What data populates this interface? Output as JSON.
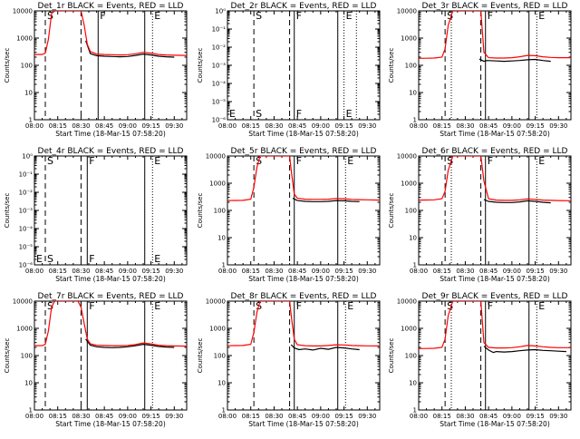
{
  "x_tick_labels": [
    "08:00",
    "08:15",
    "08:30",
    "08:45",
    "09:00",
    "09:15",
    "09:30"
  ],
  "ylabel": "Counts/sec",
  "xlabel": "Start Time (18-Mar-15 07:58:20)",
  "series_colors": {
    "Events": "#000000",
    "LLD": "#ff0000"
  },
  "chart_data": [
    {
      "type": "line",
      "title": "Det_1r BLACK = Events, RED = LLD",
      "x_unit": "minutes after 08:00",
      "xlim": [
        0,
        98
      ],
      "yscale": "log",
      "ylim": [
        1,
        10000
      ],
      "ytick_labels": [
        "1",
        "10",
        "100",
        "1000",
        "10000"
      ],
      "vlines": [
        {
          "x": 7,
          "style": "dashed",
          "label": "S"
        },
        {
          "x": 30,
          "style": "dashed",
          "label": ""
        },
        {
          "x": 41,
          "style": "solid",
          "label": "F"
        },
        {
          "x": 71,
          "style": "solid",
          "label": ""
        },
        {
          "x": 76,
          "style": "dotted",
          "label": "E"
        }
      ],
      "series": [
        {
          "name": "Events",
          "color": "#000000",
          "x": [
            33,
            36,
            40,
            45,
            50,
            55,
            60,
            65,
            70,
            75,
            80,
            85,
            90
          ],
          "y": [
            800,
            270,
            225,
            215,
            210,
            205,
            210,
            230,
            260,
            240,
            215,
            205,
            200
          ]
        },
        {
          "name": "LLD",
          "color": "#ff0000",
          "x": [
            0,
            5,
            7,
            9,
            11,
            13,
            15,
            20,
            25,
            28,
            30,
            32,
            34,
            36,
            40,
            45,
            50,
            55,
            60,
            65,
            70,
            75,
            80,
            85,
            90,
            98
          ],
          "y": [
            250,
            252,
            280,
            900,
            8000,
            10000,
            10000,
            10000,
            10000,
            10000,
            10000,
            3000,
            600,
            320,
            260,
            250,
            245,
            240,
            245,
            265,
            300,
            280,
            250,
            240,
            235,
            230
          ]
        }
      ]
    },
    {
      "type": "line",
      "title": "Det_2r BLACK = Events, RED = LLD",
      "x_unit": "minutes after 08:00",
      "xlim": [
        0,
        98
      ],
      "yscale": "log",
      "ylim": [
        1e-06,
        1
      ],
      "ytick_labels": [
        "10⁻⁶",
        "10⁻⁵",
        "10⁻⁴",
        "10⁻³",
        "10⁻²",
        "10⁻¹",
        "10⁰"
      ],
      "vlines": [
        {
          "x": 17,
          "style": "dashed",
          "label": "S"
        },
        {
          "x": 40,
          "style": "dashed",
          "label": ""
        },
        {
          "x": 43,
          "style": "solid",
          "label": "F"
        },
        {
          "x": 71,
          "style": "solid",
          "label": ""
        },
        {
          "x": 75,
          "style": "dotted",
          "label": "E"
        },
        {
          "x": 83,
          "style": "dotted",
          "label": ""
        }
      ],
      "side_labels": [
        "E"
      ],
      "series": []
    },
    {
      "type": "line",
      "title": "Det_3r BLACK = Events, RED = LLD",
      "x_unit": "minutes after 08:00",
      "xlim": [
        0,
        98
      ],
      "yscale": "log",
      "ylim": [
        1,
        10000
      ],
      "ytick_labels": [
        "1",
        "10",
        "100",
        "1000",
        "10000"
      ],
      "vlines": [
        {
          "x": 17,
          "style": "dashed",
          "label": "S"
        },
        {
          "x": 21,
          "style": "dotted",
          "label": ""
        },
        {
          "x": 40,
          "style": "dashed",
          "label": ""
        },
        {
          "x": 43,
          "style": "solid",
          "label": "F"
        },
        {
          "x": 71,
          "style": "solid",
          "label": ""
        },
        {
          "x": 76,
          "style": "dotted",
          "label": "E"
        }
      ],
      "series": [
        {
          "name": "Events",
          "color": "#000000",
          "x": [
            39,
            42,
            44,
            50,
            55,
            60,
            65,
            70,
            75,
            80,
            85
          ],
          "y": [
            170,
            140,
            150,
            145,
            140,
            145,
            150,
            160,
            165,
            150,
            140
          ]
        },
        {
          "name": "LLD",
          "color": "#ff0000",
          "x": [
            0,
            5,
            10,
            15,
            17,
            19,
            22,
            30,
            38,
            40,
            42,
            45,
            50,
            55,
            60,
            65,
            70,
            75,
            80,
            85,
            90,
            98
          ],
          "y": [
            180,
            182,
            185,
            200,
            400,
            3000,
            10000,
            10000,
            10000,
            10000,
            300,
            190,
            185,
            185,
            190,
            205,
            230,
            225,
            205,
            195,
            190,
            190
          ]
        }
      ]
    },
    {
      "type": "line",
      "title": "Det_4r BLACK = Events, RED = LLD",
      "x_unit": "minutes after 08:00",
      "xlim": [
        0,
        98
      ],
      "yscale": "log",
      "ylim": [
        1e-06,
        1
      ],
      "ytick_labels": [
        "10⁻⁶",
        "10⁻⁵",
        "10⁻⁴",
        "10⁻³",
        "10⁻²",
        "10⁻¹",
        "10⁰"
      ],
      "vlines": [
        {
          "x": 7,
          "style": "dashed",
          "label": "S"
        },
        {
          "x": 30,
          "style": "dashed",
          "label": ""
        },
        {
          "x": 34,
          "style": "solid",
          "label": "F"
        },
        {
          "x": 71,
          "style": "solid",
          "label": ""
        },
        {
          "x": 76,
          "style": "dotted",
          "label": "E"
        }
      ],
      "side_labels": [
        "E"
      ],
      "series": []
    },
    {
      "type": "line",
      "title": "Det_5r BLACK = Events, RED = LLD",
      "x_unit": "minutes after 08:00",
      "xlim": [
        0,
        98
      ],
      "yscale": "log",
      "ylim": [
        1,
        10000
      ],
      "ytick_labels": [
        "1",
        "10",
        "100",
        "1000",
        "10000"
      ],
      "vlines": [
        {
          "x": 17,
          "style": "dashed",
          "label": "S"
        },
        {
          "x": 40,
          "style": "dashed",
          "label": ""
        },
        {
          "x": 43,
          "style": "solid",
          "label": "F"
        },
        {
          "x": 71,
          "style": "solid",
          "label": ""
        },
        {
          "x": 76,
          "style": "dotted",
          "label": "E"
        }
      ],
      "series": [
        {
          "name": "Events",
          "color": "#000000",
          "x": [
            42,
            45,
            50,
            55,
            60,
            65,
            70,
            75,
            80,
            85
          ],
          "y": [
            280,
            230,
            215,
            210,
            210,
            215,
            230,
            225,
            215,
            210
          ]
        },
        {
          "name": "LLD",
          "color": "#ff0000",
          "x": [
            0,
            5,
            10,
            15,
            17,
            19,
            21,
            25,
            30,
            38,
            40,
            41,
            43,
            45,
            50,
            55,
            60,
            65,
            70,
            75,
            80,
            85,
            90,
            98
          ],
          "y": [
            230,
            232,
            235,
            260,
            700,
            4000,
            10000,
            10000,
            10000,
            10000,
            10000,
            3000,
            400,
            280,
            260,
            255,
            255,
            260,
            275,
            270,
            255,
            250,
            245,
            240
          ]
        }
      ]
    },
    {
      "type": "line",
      "title": "Det_6r BLACK = Events, RED = LLD",
      "x_unit": "minutes after 08:00",
      "xlim": [
        0,
        98
      ],
      "yscale": "log",
      "ylim": [
        1,
        10000
      ],
      "ytick_labels": [
        "1",
        "10",
        "100",
        "1000",
        "10000"
      ],
      "vlines": [
        {
          "x": 17,
          "style": "dashed",
          "label": "S"
        },
        {
          "x": 21,
          "style": "dotted",
          "label": ""
        },
        {
          "x": 40,
          "style": "dashed",
          "label": ""
        },
        {
          "x": 43,
          "style": "solid",
          "label": "F"
        },
        {
          "x": 71,
          "style": "solid",
          "label": ""
        },
        {
          "x": 76,
          "style": "dotted",
          "label": "E"
        }
      ],
      "series": [
        {
          "name": "Events",
          "color": "#000000",
          "x": [
            42,
            45,
            50,
            55,
            60,
            65,
            70,
            75,
            80,
            85
          ],
          "y": [
            250,
            215,
            200,
            195,
            195,
            205,
            225,
            215,
            200,
            190
          ]
        },
        {
          "name": "LLD",
          "color": "#ff0000",
          "x": [
            0,
            5,
            10,
            15,
            17,
            19,
            22,
            30,
            38,
            40,
            42,
            45,
            50,
            55,
            60,
            65,
            70,
            75,
            80,
            85,
            90,
            98
          ],
          "y": [
            240,
            242,
            245,
            270,
            500,
            3000,
            10000,
            10000,
            10000,
            10000,
            1200,
            270,
            240,
            235,
            235,
            245,
            265,
            255,
            240,
            235,
            230,
            228
          ]
        }
      ]
    },
    {
      "type": "line",
      "title": "Det_7r BLACK = Events, RED = LLD",
      "x_unit": "minutes after 08:00",
      "xlim": [
        0,
        98
      ],
      "yscale": "log",
      "ylim": [
        1,
        10000
      ],
      "ytick_labels": [
        "1",
        "10",
        "100",
        "1000",
        "10000"
      ],
      "vlines": [
        {
          "x": 7,
          "style": "dashed",
          "label": "S"
        },
        {
          "x": 30,
          "style": "dashed",
          "label": ""
        },
        {
          "x": 34,
          "style": "solid",
          "label": "F"
        },
        {
          "x": 71,
          "style": "solid",
          "label": ""
        },
        {
          "x": 76,
          "style": "dotted",
          "label": "E"
        }
      ],
      "series": [
        {
          "name": "Events",
          "color": "#000000",
          "x": [
            33,
            36,
            40,
            45,
            50,
            55,
            60,
            65,
            70,
            75,
            80,
            85,
            90
          ],
          "y": [
            400,
            240,
            210,
            200,
            195,
            200,
            210,
            230,
            260,
            240,
            215,
            205,
            200
          ]
        },
        {
          "name": "LLD",
          "color": "#ff0000",
          "x": [
            0,
            5,
            7,
            9,
            11,
            13,
            15,
            20,
            25,
            28,
            30,
            32,
            34,
            36,
            40,
            45,
            50,
            55,
            60,
            65,
            70,
            75,
            80,
            85,
            90,
            98
          ],
          "y": [
            230,
            232,
            260,
            800,
            6000,
            10000,
            10000,
            10000,
            10000,
            10000,
            6000,
            1500,
            400,
            270,
            240,
            235,
            230,
            230,
            235,
            255,
            290,
            270,
            240,
            230,
            225,
            222
          ]
        }
      ]
    },
    {
      "type": "line",
      "title": "Det_8r BLACK = Events, RED = LLD",
      "x_unit": "minutes after 08:00",
      "xlim": [
        0,
        98
      ],
      "yscale": "log",
      "ylim": [
        1,
        10000
      ],
      "ytick_labels": [
        "1",
        "10",
        "100",
        "1000",
        "10000"
      ],
      "vlines": [
        {
          "x": 17,
          "style": "dashed",
          "label": "S"
        },
        {
          "x": 40,
          "style": "dashed",
          "label": ""
        },
        {
          "x": 43,
          "style": "solid",
          "label": "F"
        },
        {
          "x": 71,
          "style": "solid",
          "label": ""
        },
        {
          "x": 76,
          "style": "dotted",
          "label": "E"
        }
      ],
      "series": [
        {
          "name": "Events",
          "color": "#000000",
          "x": [
            41,
            43,
            46,
            50,
            55,
            60,
            65,
            70,
            75,
            80,
            85
          ],
          "y": [
            250,
            190,
            165,
            175,
            160,
            185,
            170,
            200,
            190,
            175,
            165
          ]
        },
        {
          "name": "LLD",
          "color": "#ff0000",
          "x": [
            0,
            5,
            10,
            15,
            17,
            19,
            21,
            25,
            30,
            38,
            40,
            41,
            43,
            45,
            50,
            55,
            60,
            65,
            70,
            75,
            80,
            85,
            90,
            98
          ],
          "y": [
            230,
            232,
            235,
            260,
            700,
            4000,
            10000,
            10000,
            10000,
            10000,
            10000,
            3000,
            400,
            250,
            230,
            225,
            225,
            235,
            250,
            245,
            235,
            230,
            228,
            225
          ]
        }
      ]
    },
    {
      "type": "line",
      "title": "Det_9r BLACK = Events, RED = LLD",
      "x_unit": "minutes after 08:00",
      "xlim": [
        0,
        98
      ],
      "yscale": "log",
      "ylim": [
        1,
        10000
      ],
      "ytick_labels": [
        "1",
        "10",
        "100",
        "1000",
        "10000"
      ],
      "vlines": [
        {
          "x": 17,
          "style": "dashed",
          "label": "S"
        },
        {
          "x": 21,
          "style": "dotted",
          "label": ""
        },
        {
          "x": 40,
          "style": "dashed",
          "label": ""
        },
        {
          "x": 43,
          "style": "solid",
          "label": "F"
        },
        {
          "x": 71,
          "style": "solid",
          "label": ""
        },
        {
          "x": 76,
          "style": "dotted",
          "label": "E"
        }
      ],
      "series": [
        {
          "name": "Events",
          "color": "#000000",
          "x": [
            42,
            45,
            48,
            50,
            55,
            60,
            65,
            70,
            75,
            80,
            85,
            90,
            95
          ],
          "y": [
            220,
            160,
            130,
            140,
            135,
            140,
            150,
            160,
            165,
            155,
            150,
            145,
            140
          ]
        },
        {
          "name": "LLD",
          "color": "#ff0000",
          "x": [
            0,
            5,
            10,
            15,
            17,
            19,
            22,
            30,
            38,
            40,
            42,
            45,
            50,
            55,
            60,
            65,
            70,
            75,
            80,
            85,
            90,
            98
          ],
          "y": [
            180,
            182,
            185,
            200,
            400,
            3000,
            10000,
            10000,
            10000,
            10000,
            300,
            200,
            190,
            190,
            195,
            210,
            235,
            225,
            210,
            200,
            195,
            195
          ]
        }
      ]
    }
  ]
}
